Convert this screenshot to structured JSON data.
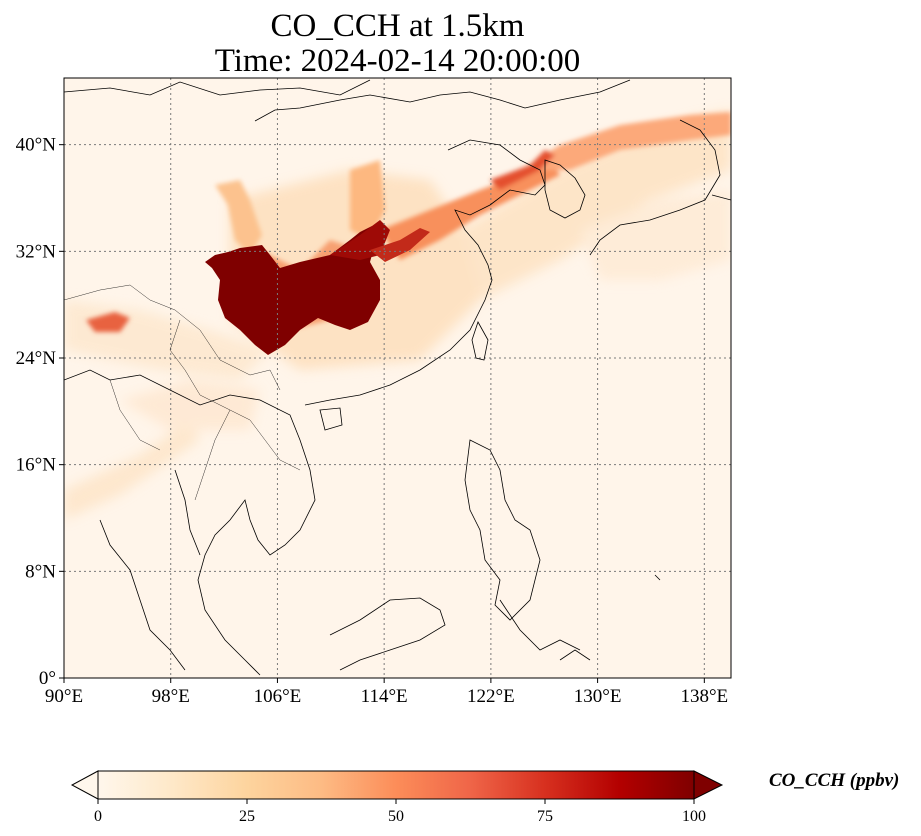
{
  "title": {
    "line1": "CO_CCH at 1.5km",
    "line2": "Time: 2024-02-14 20:00:00"
  },
  "map": {
    "projection": "PlateCarree",
    "lon_range": [
      90,
      140
    ],
    "lat_range": [
      0,
      45
    ],
    "lon_ticks": [
      "90°E",
      "98°E",
      "106°E",
      "114°E",
      "122°E",
      "130°E",
      "138°E"
    ],
    "lon_tick_values": [
      90,
      98,
      106,
      114,
      122,
      130,
      138
    ],
    "lat_ticks": [
      "0°",
      "8°N",
      "16°N",
      "24°N",
      "32°N",
      "40°N"
    ],
    "lat_tick_values": [
      0,
      8,
      16,
      24,
      32,
      40
    ],
    "gridlines": true,
    "gridline_style": "dotted",
    "features": [
      "coastlines",
      "country borders"
    ],
    "colormap": "OrRd",
    "field_description": "CO concentration high over Sichuan Basin and central China (>100 ppbv), plume extending northeast over Yellow Sea toward Korea and Japan; low background over South China Sea"
  },
  "colorbar": {
    "label": "CO_CCH (ppbv)",
    "min": 0,
    "max": 100,
    "ticks": [
      "0",
      "25",
      "50",
      "75",
      "100"
    ],
    "tick_values": [
      0,
      25,
      50,
      75,
      100
    ],
    "extend": "both",
    "colors": [
      "#fff7ec",
      "#fee8c8",
      "#fdd49e",
      "#fdbb84",
      "#fc8d59",
      "#ef6548",
      "#d7301f",
      "#b30000",
      "#7f0000"
    ]
  }
}
